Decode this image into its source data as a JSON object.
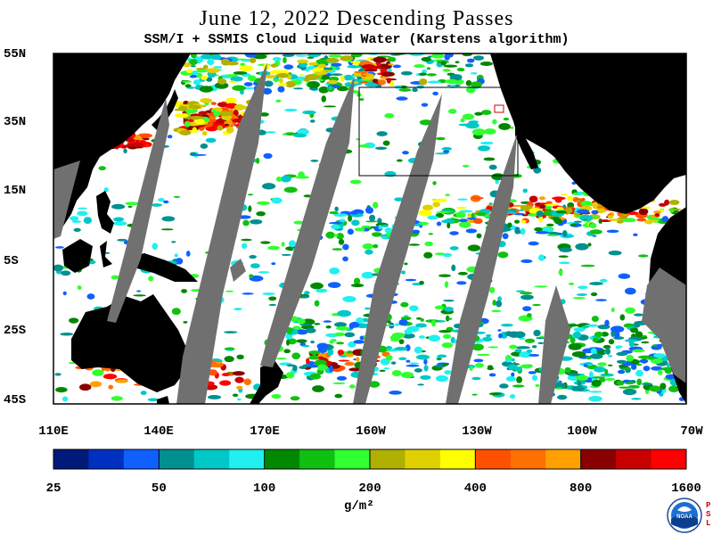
{
  "title": "June 12, 2022  Descending Passes",
  "subtitle": "SSM/I + SSMIS Cloud Liquid Water (Karstens algorithm)",
  "lat_labels": [
    "55N",
    "35N",
    "15N",
    "5S",
    "25S",
    "45S"
  ],
  "lon_labels": [
    "110E",
    "140E",
    "170E",
    "160W",
    "130W",
    "100W",
    "70W"
  ],
  "colorbar": {
    "tick_labels": [
      "25",
      "50",
      "100",
      "200",
      "400",
      "800",
      "1600"
    ],
    "units": "g/m²",
    "colors": [
      "#001a7a",
      "#0030c0",
      "#1060ff",
      "#009090",
      "#00c8c8",
      "#20f0f0",
      "#008800",
      "#10c010",
      "#30ff30",
      "#b0b000",
      "#e0d000",
      "#ffff00",
      "#ff5000",
      "#ff7000",
      "#ffa000",
      "#8a0000",
      "#c80000",
      "#ff0000"
    ]
  },
  "map_colors": {
    "land": "#000000",
    "no_data": "#707070",
    "clear": "#ffffff",
    "frame": "#000000"
  },
  "logo": {
    "label": "NOAA",
    "side_text": "PSL"
  }
}
